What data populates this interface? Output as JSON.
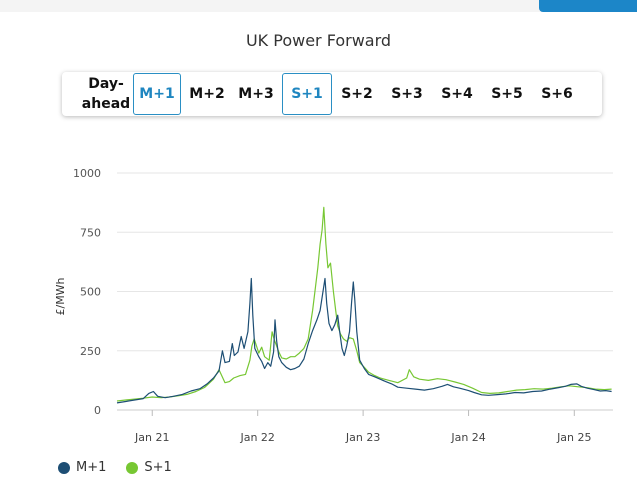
{
  "page": {
    "title": "UK Power Forward"
  },
  "tabs": [
    {
      "label": "Day-\nahead",
      "active": false
    },
    {
      "label": "M+1",
      "active": true
    },
    {
      "label": "M+2",
      "active": false
    },
    {
      "label": "M+3",
      "active": false
    },
    {
      "label": "S+1",
      "active": true
    },
    {
      "label": "S+2",
      "active": false
    },
    {
      "label": "S+3",
      "active": false
    },
    {
      "label": "S+4",
      "active": false
    },
    {
      "label": "S+5",
      "active": false
    },
    {
      "label": "S+6",
      "active": false
    }
  ],
  "colors": {
    "m1": "#1d4e74",
    "s1": "#77c733",
    "active_tab": "#1f86c0",
    "accent": "#1c86c8"
  },
  "chart_data": {
    "type": "line",
    "ylabel": "£/MWh",
    "ylim": [
      0,
      1000
    ],
    "yticks": [
      0,
      250,
      500,
      750,
      1000
    ],
    "xlim": [
      "2020-09-01",
      "2025-05-15"
    ],
    "xticks": [
      {
        "date": "2021-01-01",
        "label": "Jan 21"
      },
      {
        "date": "2022-01-01",
        "label": "Jan 22"
      },
      {
        "date": "2023-01-01",
        "label": "Jan 23"
      },
      {
        "date": "2024-01-01",
        "label": "Jan 24"
      },
      {
        "date": "2025-01-01",
        "label": "Jan 25"
      }
    ],
    "grid": true,
    "legend_position": "bottom-left",
    "series": [
      {
        "name": "M+1",
        "color": "#1d4e74",
        "points": [
          [
            "2020-09-01",
            30
          ],
          [
            "2020-10-01",
            36
          ],
          [
            "2020-11-01",
            42
          ],
          [
            "2020-12-01",
            48
          ],
          [
            "2020-12-20",
            70
          ],
          [
            "2021-01-05",
            78
          ],
          [
            "2021-01-20",
            58
          ],
          [
            "2021-02-15",
            52
          ],
          [
            "2021-03-15",
            58
          ],
          [
            "2021-04-15",
            66
          ],
          [
            "2021-05-15",
            80
          ],
          [
            "2021-06-15",
            90
          ],
          [
            "2021-07-10",
            110
          ],
          [
            "2021-08-01",
            135
          ],
          [
            "2021-08-20",
            165
          ],
          [
            "2021-09-01",
            250
          ],
          [
            "2021-09-10",
            200
          ],
          [
            "2021-09-25",
            205
          ],
          [
            "2021-10-05",
            280
          ],
          [
            "2021-10-12",
            230
          ],
          [
            "2021-10-25",
            245
          ],
          [
            "2021-11-05",
            310
          ],
          [
            "2021-11-15",
            260
          ],
          [
            "2021-11-28",
            330
          ],
          [
            "2021-12-05",
            450
          ],
          [
            "2021-12-10",
            555
          ],
          [
            "2021-12-15",
            400
          ],
          [
            "2021-12-22",
            260
          ],
          [
            "2022-01-05",
            225
          ],
          [
            "2022-01-15",
            205
          ],
          [
            "2022-01-25",
            175
          ],
          [
            "2022-02-05",
            200
          ],
          [
            "2022-02-15",
            185
          ],
          [
            "2022-02-25",
            245
          ],
          [
            "2022-03-02",
            380
          ],
          [
            "2022-03-08",
            290
          ],
          [
            "2022-03-15",
            225
          ],
          [
            "2022-03-25",
            200
          ],
          [
            "2022-04-10",
            180
          ],
          [
            "2022-04-25",
            170
          ],
          [
            "2022-05-10",
            175
          ],
          [
            "2022-05-25",
            185
          ],
          [
            "2022-06-10",
            215
          ],
          [
            "2022-06-25",
            280
          ],
          [
            "2022-07-10",
            335
          ],
          [
            "2022-07-25",
            380
          ],
          [
            "2022-08-05",
            420
          ],
          [
            "2022-08-15",
            500
          ],
          [
            "2022-08-22",
            555
          ],
          [
            "2022-08-28",
            450
          ],
          [
            "2022-09-05",
            365
          ],
          [
            "2022-09-15",
            335
          ],
          [
            "2022-09-25",
            360
          ],
          [
            "2022-10-05",
            400
          ],
          [
            "2022-10-12",
            330
          ],
          [
            "2022-10-20",
            260
          ],
          [
            "2022-10-28",
            230
          ],
          [
            "2022-11-05",
            270
          ],
          [
            "2022-11-15",
            330
          ],
          [
            "2022-11-22",
            455
          ],
          [
            "2022-11-28",
            540
          ],
          [
            "2022-12-03",
            470
          ],
          [
            "2022-12-10",
            330
          ],
          [
            "2022-12-20",
            210
          ],
          [
            "2023-01-05",
            175
          ],
          [
            "2023-01-20",
            150
          ],
          [
            "2023-02-10",
            140
          ],
          [
            "2023-03-01",
            130
          ],
          [
            "2023-03-20",
            120
          ],
          [
            "2023-04-10",
            110
          ],
          [
            "2023-05-01",
            96
          ],
          [
            "2023-06-01",
            92
          ],
          [
            "2023-07-01",
            88
          ],
          [
            "2023-08-01",
            84
          ],
          [
            "2023-09-01",
            90
          ],
          [
            "2023-10-01",
            100
          ],
          [
            "2023-10-20",
            108
          ],
          [
            "2023-11-10",
            98
          ],
          [
            "2023-12-01",
            92
          ],
          [
            "2024-01-01",
            82
          ],
          [
            "2024-01-20",
            74
          ],
          [
            "2024-02-15",
            64
          ],
          [
            "2024-03-10",
            62
          ],
          [
            "2024-04-10",
            65
          ],
          [
            "2024-05-10",
            68
          ],
          [
            "2024-06-10",
            74
          ],
          [
            "2024-07-10",
            72
          ],
          [
            "2024-08-10",
            78
          ],
          [
            "2024-09-10",
            80
          ],
          [
            "2024-10-10",
            88
          ],
          [
            "2024-11-10",
            95
          ],
          [
            "2024-12-01",
            100
          ],
          [
            "2024-12-20",
            108
          ],
          [
            "2025-01-10",
            110
          ],
          [
            "2025-01-25",
            100
          ],
          [
            "2025-02-15",
            92
          ],
          [
            "2025-03-10",
            86
          ],
          [
            "2025-04-01",
            80
          ],
          [
            "2025-04-20",
            82
          ],
          [
            "2025-05-10",
            78
          ]
        ]
      },
      {
        "name": "S+1",
        "color": "#77c733",
        "points": [
          [
            "2020-09-01",
            38
          ],
          [
            "2020-10-01",
            42
          ],
          [
            "2020-11-01",
            46
          ],
          [
            "2020-12-01",
            50
          ],
          [
            "2021-01-01",
            55
          ],
          [
            "2021-02-01",
            52
          ],
          [
            "2021-03-01",
            55
          ],
          [
            "2021-04-01",
            60
          ],
          [
            "2021-05-01",
            66
          ],
          [
            "2021-06-01",
            78
          ],
          [
            "2021-07-01",
            95
          ],
          [
            "2021-08-01",
            130
          ],
          [
            "2021-08-20",
            170
          ],
          [
            "2021-09-10",
            115
          ],
          [
            "2021-09-25",
            120
          ],
          [
            "2021-10-10",
            135
          ],
          [
            "2021-11-01",
            145
          ],
          [
            "2021-11-20",
            150
          ],
          [
            "2021-12-05",
            210
          ],
          [
            "2021-12-12",
            270
          ],
          [
            "2021-12-20",
            300
          ],
          [
            "2022-01-05",
            240
          ],
          [
            "2022-01-15",
            265
          ],
          [
            "2022-01-25",
            225
          ],
          [
            "2022-02-10",
            210
          ],
          [
            "2022-02-20",
            330
          ],
          [
            "2022-02-28",
            295
          ],
          [
            "2022-03-06",
            275
          ],
          [
            "2022-03-15",
            245
          ],
          [
            "2022-03-25",
            220
          ],
          [
            "2022-04-10",
            215
          ],
          [
            "2022-04-25",
            225
          ],
          [
            "2022-05-10",
            225
          ],
          [
            "2022-05-25",
            240
          ],
          [
            "2022-06-10",
            260
          ],
          [
            "2022-06-25",
            300
          ],
          [
            "2022-07-10",
            420
          ],
          [
            "2022-07-20",
            520
          ],
          [
            "2022-07-28",
            600
          ],
          [
            "2022-08-05",
            700
          ],
          [
            "2022-08-12",
            760
          ],
          [
            "2022-08-18",
            855
          ],
          [
            "2022-08-25",
            700
          ],
          [
            "2022-09-01",
            600
          ],
          [
            "2022-09-10",
            620
          ],
          [
            "2022-09-20",
            500
          ],
          [
            "2022-09-28",
            420
          ],
          [
            "2022-10-05",
            355
          ],
          [
            "2022-10-15",
            320
          ],
          [
            "2022-10-25",
            300
          ],
          [
            "2022-11-05",
            290
          ],
          [
            "2022-11-15",
            305
          ],
          [
            "2022-11-28",
            300
          ],
          [
            "2022-12-10",
            250
          ],
          [
            "2022-12-20",
            200
          ],
          [
            "2023-01-05",
            180
          ],
          [
            "2023-01-20",
            160
          ],
          [
            "2023-02-10",
            145
          ],
          [
            "2023-03-01",
            135
          ],
          [
            "2023-04-01",
            125
          ],
          [
            "2023-05-01",
            115
          ],
          [
            "2023-06-01",
            135
          ],
          [
            "2023-06-10",
            170
          ],
          [
            "2023-06-25",
            140
          ],
          [
            "2023-07-15",
            130
          ],
          [
            "2023-08-15",
            125
          ],
          [
            "2023-09-15",
            132
          ],
          [
            "2023-10-15",
            128
          ],
          [
            "2023-11-15",
            118
          ],
          [
            "2023-12-15",
            108
          ],
          [
            "2024-01-15",
            92
          ],
          [
            "2024-02-15",
            74
          ],
          [
            "2024-03-15",
            70
          ],
          [
            "2024-04-15",
            72
          ],
          [
            "2024-05-15",
            78
          ],
          [
            "2024-06-15",
            84
          ],
          [
            "2024-07-15",
            86
          ],
          [
            "2024-08-15",
            90
          ],
          [
            "2024-09-15",
            88
          ],
          [
            "2024-10-15",
            92
          ],
          [
            "2024-11-15",
            98
          ],
          [
            "2024-12-15",
            102
          ],
          [
            "2025-01-15",
            98
          ],
          [
            "2025-02-15",
            94
          ],
          [
            "2025-03-15",
            88
          ],
          [
            "2025-04-15",
            86
          ],
          [
            "2025-05-10",
            88
          ]
        ]
      }
    ]
  }
}
